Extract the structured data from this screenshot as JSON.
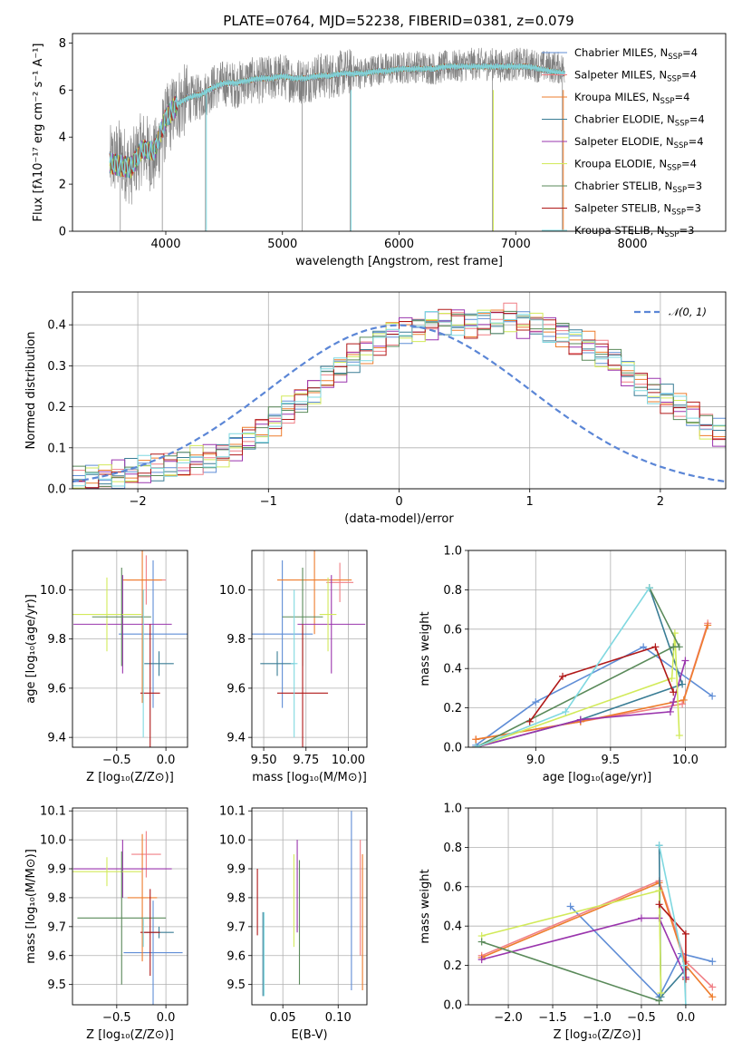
{
  "colors": {
    "Chabrier MILES": "#5f8dd6",
    "Salpeter MILES": "#f07f86",
    "Kroupa MILES": "#ee7d2d",
    "Chabrier ELODIE": "#3a7d95",
    "Salpeter ELODIE": "#9a35ad",
    "Kroupa ELODIE": "#d2ea5a",
    "Chabrier STELIB": "#5a8a5a",
    "Salpeter STELIB": "#b01818",
    "Kroupa STELIB": "#7fd8e0",
    "grey_spectrum": "#808080",
    "normal_curve": "#5b86d6"
  },
  "chart_data": [
    {
      "id": "spectrum",
      "type": "line",
      "title": "PLATE=0764, MJD=52238, FIBERID=0381, z=0.079",
      "xlabel": "wavelength [Angstrom, rest frame]",
      "ylabel": "Flux [fλ10⁻¹⁷ erg cm⁻² s⁻¹ A⁻¹]",
      "xlim": [
        3200,
        8800
      ],
      "ylim": [
        0,
        8.4
      ],
      "xticks": [
        4000,
        5000,
        6000,
        7000,
        8000
      ],
      "yticks": [
        0,
        2,
        4,
        6,
        8
      ],
      "grid": false,
      "legend": "right",
      "legend_entries": [
        {
          "label": "Chabrier MILES, N",
          "sub": "SSP",
          "suffix": "=4",
          "key": "Chabrier MILES"
        },
        {
          "label": "Salpeter MILES, N",
          "sub": "SSP",
          "suffix": "=4",
          "key": "Salpeter MILES"
        },
        {
          "label": "Kroupa MILES, N",
          "sub": "SSP",
          "suffix": "=4",
          "key": "Kroupa MILES"
        },
        {
          "label": "Chabrier ELODIE, N",
          "sub": "SSP",
          "suffix": "=4",
          "key": "Chabrier ELODIE"
        },
        {
          "label": "Salpeter ELODIE, N",
          "sub": "SSP",
          "suffix": "=4",
          "key": "Salpeter ELODIE"
        },
        {
          "label": "Kroupa ELODIE, N",
          "sub": "SSP",
          "suffix": "=4",
          "key": "Kroupa ELODIE"
        },
        {
          "label": "Chabrier STELIB, N",
          "sub": "SSP",
          "suffix": "=3",
          "key": "Chabrier STELIB"
        },
        {
          "label": "Salpeter STELIB, N",
          "sub": "SSP",
          "suffix": "=3",
          "key": "Salpeter STELIB"
        },
        {
          "label": "Kroupa STELIB, N",
          "sub": "SSP",
          "suffix": "=3",
          "key": "Kroupa STELIB"
        }
      ],
      "data_series": {
        "name": "data",
        "wavelength": [
          3520,
          3600,
          3700,
          3800,
          3900,
          4000,
          4100,
          4200,
          4300,
          4400,
          4500,
          4600,
          4700,
          4800,
          4900,
          5000,
          5100,
          5200,
          5300,
          5400,
          5500,
          5600,
          5700,
          5800,
          5900,
          6000,
          6100,
          6200,
          6300,
          6400,
          6500,
          6600,
          6700,
          6800,
          6900,
          7000,
          7100,
          7200,
          7300,
          7420
        ],
        "flux": [
          2.9,
          3.2,
          2.6,
          3.6,
          3.1,
          4.6,
          5.4,
          5.6,
          5.7,
          6.1,
          6.3,
          6.2,
          6.4,
          6.4,
          6.5,
          6.6,
          6.4,
          6.4,
          6.6,
          6.6,
          6.7,
          6.8,
          6.7,
          6.9,
          6.9,
          6.9,
          7.0,
          7.0,
          6.9,
          7.0,
          7.0,
          7.1,
          7.1,
          7.1,
          7.0,
          7.1,
          7.1,
          7.0,
          7.0,
          6.9
        ]
      },
      "model_series": {
        "wavelength": [
          3520,
          3600,
          3700,
          3800,
          3900,
          4000,
          4100,
          4200,
          4300,
          4400,
          4500,
          4600,
          4700,
          4800,
          4900,
          5000,
          5100,
          5200,
          5300,
          5400,
          5500,
          5600,
          5700,
          5800,
          5900,
          6000,
          6100,
          6200,
          6300,
          6400,
          6500,
          6600,
          6700,
          6800,
          6900,
          7000,
          7100,
          7200,
          7300,
          7420
        ],
        "flux": [
          2.9,
          2.8,
          2.7,
          3.5,
          3.4,
          4.8,
          5.4,
          5.7,
          5.8,
          6.1,
          6.3,
          6.3,
          6.4,
          6.5,
          6.5,
          6.6,
          6.5,
          6.5,
          6.6,
          6.6,
          6.7,
          6.7,
          6.7,
          6.8,
          6.8,
          6.9,
          6.9,
          6.9,
          6.9,
          7.0,
          7.0,
          7.0,
          7.0,
          7.0,
          7.0,
          7.0,
          7.0,
          6.9,
          6.8,
          6.7
        ]
      }
    },
    {
      "id": "residuals",
      "type": "line",
      "xlabel": "(data-model)/error",
      "ylabel": "Normed distribution",
      "xlim": [
        -2.5,
        2.5
      ],
      "ylim": [
        0,
        0.48
      ],
      "xticks": [
        -2,
        -1,
        0,
        1,
        2
      ],
      "xtick_labels": [
        "−2",
        "−1",
        "0",
        "1",
        "2"
      ],
      "yticks": [
        0,
        0.1,
        0.2,
        0.3,
        0.4
      ],
      "ytick_labels": [
        "0.0",
        "0.1",
        "0.2",
        "0.3",
        "0.4"
      ],
      "grid": true,
      "legend": "top-right",
      "legend_label": "𝒩(0, 1)",
      "bin_width": 0.1,
      "bin_start": -2.5,
      "hist_base": [
        0.02,
        0.025,
        0.03,
        0.035,
        0.04,
        0.045,
        0.05,
        0.055,
        0.06,
        0.07,
        0.075,
        0.085,
        0.1,
        0.12,
        0.14,
        0.165,
        0.195,
        0.22,
        0.24,
        0.27,
        0.29,
        0.32,
        0.34,
        0.36,
        0.38,
        0.39,
        0.39,
        0.4,
        0.41,
        0.41,
        0.4,
        0.41,
        0.41,
        0.42,
        0.4,
        0.4,
        0.39,
        0.38,
        0.36,
        0.35,
        0.33,
        0.31,
        0.28,
        0.26,
        0.24,
        0.22,
        0.2,
        0.18,
        0.15,
        0.135,
        0.12,
        0.105,
        0.09,
        0.08,
        0.07,
        0.06,
        0.05,
        0.045,
        0.04,
        0.035,
        0.03,
        0.025,
        0.025,
        0.02,
        0.02,
        0.02,
        0.02,
        0.02,
        0.02,
        0.02
      ],
      "normal_mu": 0,
      "normal_sigma": 1
    },
    {
      "id": "age_vs_Z",
      "type": "scatter",
      "xlabel": "Z [log₁₀(Z/Z⊙)]",
      "ylabel": "age  [log₁₀(age/yr)]",
      "xlim": [
        -0.95,
        0.22
      ],
      "ylim": [
        9.36,
        10.16
      ],
      "xticks": [
        -0.5,
        0.0
      ],
      "xtick_labels": [
        "−0.5",
        "0.0"
      ],
      "yticks": [
        9.4,
        9.6,
        9.8,
        10.0
      ],
      "ytick_labels": [
        "9.4",
        "9.6",
        "9.8",
        "10.0"
      ],
      "grid": true,
      "points": [
        {
          "key": "Chabrier MILES",
          "x": -0.13,
          "xerr": 0.35,
          "y": 9.82,
          "yerr": 0.3
        },
        {
          "key": "Salpeter MILES",
          "x": -0.2,
          "xerr": 0.2,
          "y": 10.04,
          "yerr": 0.1
        },
        {
          "key": "Kroupa MILES",
          "x": -0.24,
          "xerr": 0.2,
          "y": 10.04,
          "yerr": 0.5
        },
        {
          "key": "Chabrier ELODIE",
          "x": -0.07,
          "xerr": 0.15,
          "y": 9.7,
          "yerr": 0.05
        },
        {
          "key": "Salpeter ELODIE",
          "x": -0.44,
          "xerr": 0.5,
          "y": 9.86,
          "yerr": 0.2
        },
        {
          "key": "Kroupa ELODIE",
          "x": -0.6,
          "xerr": 0.35,
          "y": 9.9,
          "yerr": 0.15
        },
        {
          "key": "Chabrier STELIB",
          "x": -0.45,
          "xerr": 0.3,
          "y": 9.89,
          "yerr": 0.2
        },
        {
          "key": "Salpeter STELIB",
          "x": -0.16,
          "xerr": 0.1,
          "y": 9.58,
          "yerr": 0.28
        },
        {
          "key": "Kroupa STELIB",
          "x": -0.23,
          "xerr": 0.0,
          "y": 9.7,
          "yerr": 0.3
        }
      ]
    },
    {
      "id": "age_vs_mass",
      "type": "scatter",
      "xlabel": "mass [log₁₀(M/M⊙)]",
      "ylabel": "",
      "xlim": [
        9.43,
        10.11
      ],
      "ylim": [
        9.36,
        10.16
      ],
      "xticks": [
        9.5,
        9.75,
        10.0
      ],
      "xtick_labels": [
        "9.50",
        "9.75",
        "10.00"
      ],
      "yticks": [
        9.4,
        9.6,
        9.8,
        10.0
      ],
      "ytick_labels": [
        "9.4",
        "9.6",
        "9.8",
        "10.0"
      ],
      "grid": true,
      "points": [
        {
          "key": "Chabrier MILES",
          "x": 9.61,
          "y": 9.82,
          "xerr": 0.18,
          "yerr": 0.3
        },
        {
          "key": "Salpeter MILES",
          "x": 9.95,
          "y": 10.03,
          "xerr": 0.08,
          "yerr": 0.08
        },
        {
          "key": "Kroupa MILES",
          "x": 9.8,
          "y": 10.04,
          "xerr": 0.22,
          "yerr": 0.22
        },
        {
          "key": "Chabrier ELODIE",
          "x": 9.58,
          "y": 9.7,
          "xerr": 0.1,
          "yerr": 0.05
        },
        {
          "key": "Salpeter ELODIE",
          "x": 9.9,
          "y": 9.86,
          "xerr": 0.2,
          "yerr": 0.2
        },
        {
          "key": "Kroupa ELODIE",
          "x": 9.88,
          "y": 9.9,
          "xerr": 0.05,
          "yerr": 0.15
        },
        {
          "key": "Chabrier STELIB",
          "x": 9.73,
          "y": 9.89,
          "xerr": 0.12,
          "yerr": 0.2
        },
        {
          "key": "Salpeter STELIB",
          "x": 9.73,
          "y": 9.58,
          "xerr": 0.15,
          "yerr": 0.28
        },
        {
          "key": "Kroupa STELIB",
          "x": 9.68,
          "y": 9.7,
          "xerr": 0.02,
          "yerr": 0.3
        }
      ]
    },
    {
      "id": "weight_vs_age",
      "type": "line",
      "xlabel": "age  [log₁₀(age/yr)]",
      "ylabel": "mass weight",
      "xlim": [
        8.55,
        10.27
      ],
      "ylim": [
        0,
        1.0
      ],
      "xticks": [
        9.0,
        9.5,
        10.0
      ],
      "xtick_labels": [
        "9.0",
        "9.5",
        "10.0"
      ],
      "yticks": [
        0,
        0.2,
        0.4,
        0.6,
        0.8,
        1.0
      ],
      "ytick_labels": [
        "0.0",
        "0.2",
        "0.4",
        "0.6",
        "0.8",
        "1.0"
      ],
      "grid": true,
      "series": [
        {
          "key": "Chabrier MILES",
          "x": [
            8.6,
            9.0,
            9.72,
            10.18
          ],
          "y": [
            0.01,
            0.23,
            0.51,
            0.26
          ]
        },
        {
          "key": "Salpeter MILES",
          "x": [
            8.6,
            9.3,
            9.98,
            10.15
          ],
          "y": [
            0.04,
            0.13,
            0.22,
            0.63
          ]
        },
        {
          "key": "Kroupa MILES",
          "x": [
            8.6,
            9.3,
            9.99,
            10.15
          ],
          "y": [
            0.04,
            0.13,
            0.24,
            0.62
          ]
        },
        {
          "key": "Chabrier ELODIE",
          "x": [
            8.6,
            9.3,
            9.98,
            9.76
          ],
          "y": [
            0.0,
            0.14,
            0.32,
            0.81
          ]
        },
        {
          "key": "Salpeter ELODIE",
          "x": [
            8.6,
            9.3,
            9.9,
            9.92,
            10.0
          ],
          "y": [
            0.0,
            0.14,
            0.18,
            0.23,
            0.44
          ]
        },
        {
          "key": "Kroupa ELODIE",
          "x": [
            8.6,
            9.91,
            9.93,
            9.96
          ],
          "y": [
            0.0,
            0.35,
            0.58,
            0.06
          ]
        },
        {
          "key": "Chabrier STELIB",
          "x": [
            8.6,
            9.92,
            9.96,
            9.76
          ],
          "y": [
            0.0,
            0.51,
            0.51,
            0.81
          ]
        },
        {
          "key": "Salpeter STELIB",
          "x": [
            8.96,
            9.18,
            9.8,
            9.92
          ],
          "y": [
            0.13,
            0.36,
            0.51,
            0.28
          ]
        },
        {
          "key": "Kroupa STELIB",
          "x": [
            8.6,
            9.2,
            9.76
          ],
          "y": [
            0.0,
            0.18,
            0.81
          ]
        }
      ]
    },
    {
      "id": "mass_vs_Z",
      "type": "scatter",
      "xlabel": "Z [log₁₀(Z/Z⊙)]",
      "ylabel": "mass [log₁₀(M/M⊙)]",
      "xlim": [
        -0.95,
        0.22
      ],
      "ylim": [
        9.43,
        10.11
      ],
      "xticks": [
        -0.5,
        0.0
      ],
      "xtick_labels": [
        "−0.5",
        "0.0"
      ],
      "yticks": [
        9.5,
        9.6,
        9.7,
        9.8,
        9.9,
        10.0,
        10.1
      ],
      "ytick_labels": [
        "9.5",
        "9.6",
        "9.7",
        "9.8",
        "9.9",
        "10.0",
        "10.1"
      ],
      "grid": true,
      "points": [
        {
          "key": "Chabrier MILES",
          "x": -0.13,
          "xerr": 0.3,
          "y": 9.61,
          "yerr": 0.18
        },
        {
          "key": "Salpeter MILES",
          "x": -0.2,
          "xerr": 0.15,
          "y": 9.95,
          "yerr": 0.08
        },
        {
          "key": "Kroupa MILES",
          "x": -0.24,
          "xerr": 0.15,
          "y": 9.8,
          "yerr": 0.22
        },
        {
          "key": "Chabrier ELODIE",
          "x": -0.07,
          "xerr": 0.15,
          "y": 9.68,
          "yerr": 0.02
        },
        {
          "key": "Salpeter ELODIE",
          "x": -0.44,
          "xerr": 0.5,
          "y": 9.9,
          "yerr": 0.1
        },
        {
          "key": "Kroupa ELODIE",
          "x": -0.6,
          "xerr": 0.35,
          "y": 9.89,
          "yerr": 0.05
        },
        {
          "key": "Chabrier STELIB",
          "x": -0.45,
          "xerr": 0.45,
          "y": 9.73,
          "yerr": 0.23
        },
        {
          "key": "Salpeter STELIB",
          "x": -0.16,
          "xerr": 0.1,
          "y": 9.68,
          "yerr": 0.15
        },
        {
          "key": "Kroupa STELIB",
          "x": -0.23,
          "xerr": 0.0,
          "y": 9.68,
          "yerr": 0.05
        }
      ]
    },
    {
      "id": "mass_vs_ebv",
      "type": "scatter",
      "xlabel": "E(B-V)",
      "ylabel": "",
      "xlim": [
        0.022,
        0.126
      ],
      "ylim": [
        9.43,
        10.11
      ],
      "xticks": [
        0.05,
        0.1
      ],
      "xtick_labels": [
        "0.05",
        "0.10"
      ],
      "yticks": [
        9.5,
        9.6,
        9.7,
        9.8,
        9.9,
        10.0,
        10.1
      ],
      "ytick_labels": [
        "9.5",
        "9.6",
        "9.7",
        "9.8",
        "9.9",
        "10.0",
        "10.1"
      ],
      "grid": true,
      "vlines": [
        {
          "key": "Chabrier MILES",
          "x": 0.112,
          "y0": 9.48,
          "y1": 10.1
        },
        {
          "key": "Salpeter MILES",
          "x": 0.12,
          "y0": 9.6,
          "y1": 10.0
        },
        {
          "key": "Kroupa MILES",
          "x": 0.122,
          "y0": 9.48,
          "y1": 9.95
        },
        {
          "key": "Salpeter ELODIE",
          "x": 0.063,
          "y0": 9.68,
          "y1": 10.0
        },
        {
          "key": "Kroupa ELODIE",
          "x": 0.06,
          "y0": 9.63,
          "y1": 9.95
        },
        {
          "key": "Chabrier STELIB",
          "x": 0.065,
          "y0": 9.5,
          "y1": 9.93
        },
        {
          "key": "Salpeter STELIB",
          "x": 0.027,
          "y0": 9.67,
          "y1": 9.9
        },
        {
          "key": "Chabrier ELODIE",
          "x": 0.032,
          "y0": 9.46,
          "y1": 9.75
        },
        {
          "key": "Kroupa STELIB",
          "x": 0.033,
          "y0": 9.46,
          "y1": 9.75
        }
      ]
    },
    {
      "id": "weight_vs_Z",
      "type": "line",
      "xlabel": "Z [log₁₀(Z/Z⊙)]",
      "ylabel": "mass weight",
      "xlim": [
        -2.45,
        0.45
      ],
      "ylim": [
        0,
        1.0
      ],
      "xticks": [
        -2.0,
        -1.5,
        -1.0,
        -0.5,
        0.0
      ],
      "xtick_labels": [
        "−2.0",
        "−1.5",
        "−1.0",
        "−0.5",
        "0.0"
      ],
      "yticks": [
        0,
        0.2,
        0.4,
        0.6,
        0.8,
        1.0
      ],
      "ytick_labels": [
        "0.0",
        "0.2",
        "0.4",
        "0.6",
        "0.8",
        "1.0"
      ],
      "grid": true,
      "series": [
        {
          "key": "Chabrier MILES",
          "x": [
            -1.3,
            -0.3,
            -0.05,
            0.3
          ],
          "y": [
            0.5,
            0.04,
            0.26,
            0.22
          ]
        },
        {
          "key": "Salpeter MILES",
          "x": [
            -2.3,
            -0.3,
            0.0,
            0.3
          ],
          "y": [
            0.25,
            0.63,
            0.22,
            0.09
          ]
        },
        {
          "key": "Kroupa MILES",
          "x": [
            -2.3,
            -0.3,
            0.0,
            0.3
          ],
          "y": [
            0.24,
            0.62,
            0.2,
            0.04
          ]
        },
        {
          "key": "Chabrier ELODIE",
          "x": [
            -0.3,
            -0.28,
            0.0
          ],
          "y": [
            0.81,
            0.04,
            0.18
          ]
        },
        {
          "key": "Salpeter ELODIE",
          "x": [
            -2.3,
            -0.5,
            -0.3,
            0.0
          ],
          "y": [
            0.23,
            0.44,
            0.44,
            0.14
          ]
        },
        {
          "key": "Kroupa ELODIE",
          "x": [
            -2.3,
            -0.3,
            -0.28
          ],
          "y": [
            0.35,
            0.58,
            0.06
          ]
        },
        {
          "key": "Chabrier STELIB",
          "x": [
            -2.3,
            -0.3
          ],
          "y": [
            0.32,
            0.02
          ]
        },
        {
          "key": "Salpeter STELIB",
          "x": [
            -0.3,
            0.0,
            0.0
          ],
          "y": [
            0.51,
            0.36,
            0.13
          ]
        },
        {
          "key": "Kroupa STELIB",
          "x": [
            -0.3,
            -0.02,
            0.0
          ],
          "y": [
            0.81,
            0.2,
            0.0
          ]
        }
      ]
    }
  ]
}
